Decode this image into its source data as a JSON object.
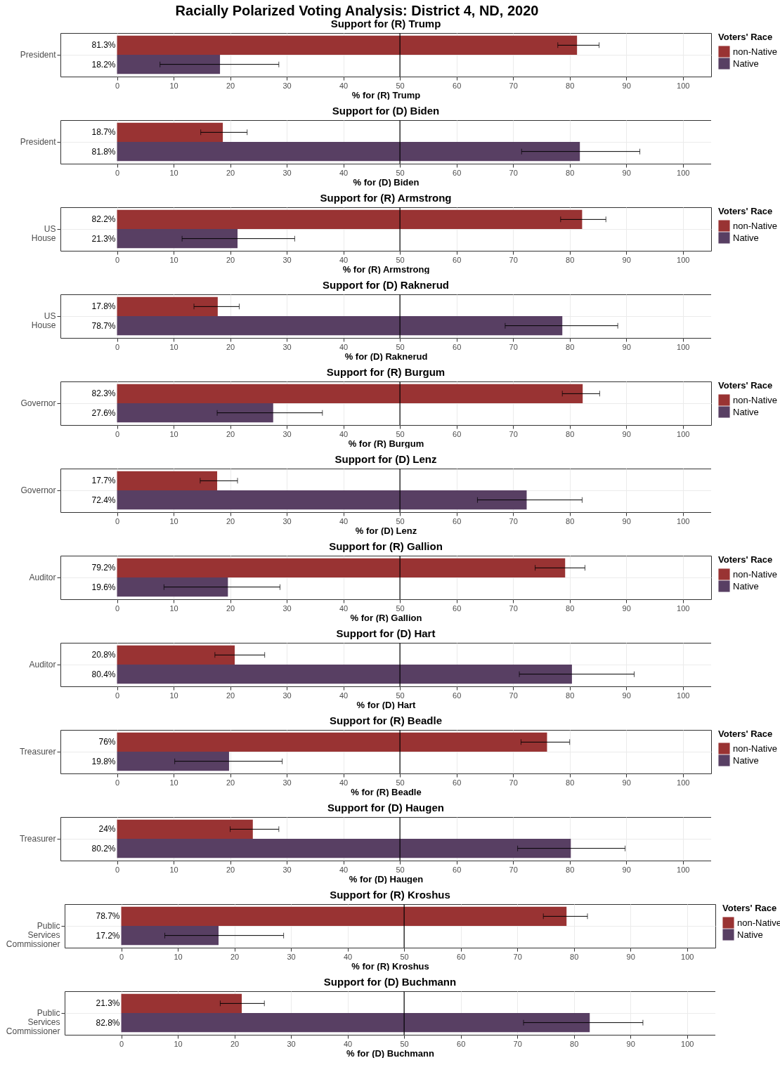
{
  "chart_data": [
    {
      "type": "bar",
      "orientation": "horizontal",
      "annotations": [
        "Racially Polarized Voting Analysis: District 4, ND, 2020"
      ],
      "title": "Support for (R) Trump",
      "xlabel": "% for (R) Trump",
      "legend_title": "Voters' Race",
      "legend": "right",
      "grid": true,
      "categories": [
        "President"
      ],
      "xlim": [
        -10,
        105
      ],
      "xticks": [
        0,
        10,
        20,
        30,
        40,
        50,
        60,
        70,
        80,
        90,
        100
      ],
      "ref_lines": [
        {
          "axis": "x",
          "value": 50
        }
      ],
      "series": [
        {
          "name": "non-Native",
          "color": "#993333",
          "values": [
            81.3
          ],
          "errors": [
            [
              77.9,
              85.2
            ]
          ],
          "value_labels": [
            "81.3%"
          ]
        },
        {
          "name": "Native",
          "color": "#583f63",
          "values": [
            18.2
          ],
          "errors": [
            [
              7.6,
              28.6
            ]
          ],
          "value_labels": [
            "18.2%"
          ]
        }
      ]
    },
    {
      "type": "bar",
      "orientation": "horizontal",
      "title": "Support for (D) Biden",
      "xlabel": "% for (D) Biden",
      "grid": true,
      "categories": [
        "President"
      ],
      "xlim": [
        -10,
        105
      ],
      "xticks": [
        0,
        10,
        20,
        30,
        40,
        50,
        60,
        70,
        80,
        90,
        100
      ],
      "ref_lines": [
        {
          "axis": "x",
          "value": 50
        }
      ],
      "series": [
        {
          "color": "#993333",
          "values": [
            18.7
          ],
          "errors": [
            [
              14.8,
              23.0
            ]
          ],
          "value_labels": [
            "18.7%"
          ]
        },
        {
          "color": "#583f63",
          "values": [
            81.8
          ],
          "errors": [
            [
              71.5,
              92.4
            ]
          ],
          "value_labels": [
            "81.8%"
          ]
        }
      ]
    },
    {
      "type": "bar",
      "orientation": "horizontal",
      "title": "Support for (R) Armstrong",
      "xlabel": "% for (R) Armstrong",
      "legend_title": "Voters' Race",
      "legend": "right",
      "grid": true,
      "categories": [
        "US House"
      ],
      "xlim": [
        -10,
        105
      ],
      "xticks": [
        0,
        10,
        20,
        30,
        40,
        50,
        60,
        70,
        80,
        90,
        100
      ],
      "ref_lines": [
        {
          "axis": "x",
          "value": 50
        }
      ],
      "series": [
        {
          "name": "non-Native",
          "color": "#993333",
          "values": [
            82.2
          ],
          "errors": [
            [
              78.4,
              86.4
            ]
          ],
          "value_labels": [
            "82.2%"
          ]
        },
        {
          "name": "Native",
          "color": "#583f63",
          "values": [
            21.3
          ],
          "errors": [
            [
              11.5,
              31.4
            ]
          ],
          "value_labels": [
            "21.3%"
          ]
        }
      ]
    },
    {
      "type": "bar",
      "orientation": "horizontal",
      "title": "Support for (D) Raknerud",
      "xlabel": "% for (D) Raknerud",
      "grid": true,
      "categories": [
        "US House"
      ],
      "xlim": [
        -10,
        105
      ],
      "xticks": [
        0,
        10,
        20,
        30,
        40,
        50,
        60,
        70,
        80,
        90,
        100
      ],
      "ref_lines": [
        {
          "axis": "x",
          "value": 50
        }
      ],
      "series": [
        {
          "color": "#993333",
          "values": [
            17.8
          ],
          "errors": [
            [
              13.6,
              21.6
            ]
          ],
          "value_labels": [
            "17.8%"
          ]
        },
        {
          "color": "#583f63",
          "values": [
            78.7
          ],
          "errors": [
            [
              68.6,
              88.5
            ]
          ],
          "value_labels": [
            "78.7%"
          ]
        }
      ]
    },
    {
      "type": "bar",
      "orientation": "horizontal",
      "title": "Support for (R) Burgum",
      "xlabel": "% for (R) Burgum",
      "legend_title": "Voters' Race",
      "legend": "right",
      "grid": true,
      "categories": [
        "Governor"
      ],
      "xlim": [
        -10,
        105
      ],
      "xticks": [
        0,
        10,
        20,
        30,
        40,
        50,
        60,
        70,
        80,
        90,
        100
      ],
      "ref_lines": [
        {
          "axis": "x",
          "value": 50
        }
      ],
      "series": [
        {
          "name": "non-Native",
          "color": "#993333",
          "values": [
            82.3
          ],
          "errors": [
            [
              78.7,
              85.3
            ]
          ],
          "value_labels": [
            "82.3%"
          ]
        },
        {
          "name": "Native",
          "color": "#583f63",
          "values": [
            27.6
          ],
          "errors": [
            [
              17.7,
              36.3
            ]
          ],
          "value_labels": [
            "27.6%"
          ]
        }
      ]
    },
    {
      "type": "bar",
      "orientation": "horizontal",
      "title": "Support for (D) Lenz",
      "xlabel": "% for (D) Lenz",
      "grid": true,
      "categories": [
        "Governor"
      ],
      "xlim": [
        -10,
        105
      ],
      "xticks": [
        0,
        10,
        20,
        30,
        40,
        50,
        60,
        70,
        80,
        90,
        100
      ],
      "ref_lines": [
        {
          "axis": "x",
          "value": 50
        }
      ],
      "series": [
        {
          "color": "#993333",
          "values": [
            17.7
          ],
          "errors": [
            [
              14.7,
              21.3
            ]
          ],
          "value_labels": [
            "17.7%"
          ]
        },
        {
          "color": "#583f63",
          "values": [
            72.4
          ],
          "errors": [
            [
              63.7,
              82.2
            ]
          ],
          "value_labels": [
            "72.4%"
          ]
        }
      ]
    },
    {
      "type": "bar",
      "orientation": "horizontal",
      "title": "Support for (R) Gallion",
      "xlabel": "% for (R) Gallion",
      "legend_title": "Voters' Race",
      "legend": "right",
      "grid": true,
      "categories": [
        "Auditor"
      ],
      "xlim": [
        -10,
        105
      ],
      "xticks": [
        0,
        10,
        20,
        30,
        40,
        50,
        60,
        70,
        80,
        90,
        100
      ],
      "ref_lines": [
        {
          "axis": "x",
          "value": 50
        }
      ],
      "series": [
        {
          "name": "non-Native",
          "color": "#993333",
          "values": [
            79.2
          ],
          "errors": [
            [
              73.9,
              82.7
            ]
          ],
          "value_labels": [
            "79.2%"
          ]
        },
        {
          "name": "Native",
          "color": "#583f63",
          "values": [
            19.6
          ],
          "errors": [
            [
              8.3,
              28.8
            ]
          ],
          "value_labels": [
            "19.6%"
          ]
        }
      ]
    },
    {
      "type": "bar",
      "orientation": "horizontal",
      "title": "Support for (D) Hart",
      "xlabel": "% for (D) Hart",
      "grid": true,
      "categories": [
        "Auditor"
      ],
      "xlim": [
        -10,
        105
      ],
      "xticks": [
        0,
        10,
        20,
        30,
        40,
        50,
        60,
        70,
        80,
        90,
        100
      ],
      "ref_lines": [
        {
          "axis": "x",
          "value": 50
        }
      ],
      "series": [
        {
          "color": "#993333",
          "values": [
            20.8
          ],
          "errors": [
            [
              17.3,
              26.1
            ]
          ],
          "value_labels": [
            "20.8%"
          ]
        },
        {
          "color": "#583f63",
          "values": [
            80.4
          ],
          "errors": [
            [
              71.1,
              91.4
            ]
          ],
          "value_labels": [
            "80.4%"
          ]
        }
      ]
    },
    {
      "type": "bar",
      "orientation": "horizontal",
      "title": "Support for (R) Beadle",
      "xlabel": "% for (R) Beadle",
      "legend_title": "Voters' Race",
      "legend": "right",
      "grid": true,
      "categories": [
        "Treasurer"
      ],
      "xlim": [
        -10,
        105
      ],
      "xticks": [
        0,
        10,
        20,
        30,
        40,
        50,
        60,
        70,
        80,
        90,
        100
      ],
      "ref_lines": [
        {
          "axis": "x",
          "value": 50
        }
      ],
      "series": [
        {
          "name": "non-Native",
          "color": "#993333",
          "values": [
            76
          ],
          "errors": [
            [
              71.4,
              80.0
            ]
          ],
          "value_labels": [
            "76%"
          ]
        },
        {
          "name": "Native",
          "color": "#583f63",
          "values": [
            19.8
          ],
          "errors": [
            [
              10.2,
              29.2
            ]
          ],
          "value_labels": [
            "19.8%"
          ]
        }
      ]
    },
    {
      "type": "bar",
      "orientation": "horizontal",
      "title": "Support for (D) Haugen",
      "xlabel": "% for (D) Haugen",
      "grid": true,
      "categories": [
        "Treasurer"
      ],
      "xlim": [
        -10,
        105
      ],
      "xticks": [
        0,
        10,
        20,
        30,
        40,
        50,
        60,
        70,
        80,
        90,
        100
      ],
      "ref_lines": [
        {
          "axis": "x",
          "value": 50
        }
      ],
      "series": [
        {
          "color": "#993333",
          "values": [
            24
          ],
          "errors": [
            [
              20.0,
              28.6
            ]
          ],
          "value_labels": [
            "24%"
          ]
        },
        {
          "color": "#583f63",
          "values": [
            80.2
          ],
          "errors": [
            [
              70.8,
              89.8
            ]
          ],
          "value_labels": [
            "80.2%"
          ]
        }
      ]
    },
    {
      "type": "bar",
      "orientation": "horizontal",
      "title": "Support for (R) Kroshus",
      "xlabel": "% for (R) Kroshus",
      "legend_title": "Voters' Race",
      "legend": "right",
      "grid": true,
      "categories": [
        "Public Services Commissioner"
      ],
      "xlim": [
        -10,
        105
      ],
      "xticks": [
        0,
        10,
        20,
        30,
        40,
        50,
        60,
        70,
        80,
        90,
        100
      ],
      "ref_lines": [
        {
          "axis": "x",
          "value": 50
        }
      ],
      "series": [
        {
          "name": "non-Native",
          "color": "#993333",
          "values": [
            78.7
          ],
          "errors": [
            [
              74.6,
              82.4
            ]
          ],
          "value_labels": [
            "78.7%"
          ]
        },
        {
          "name": "Native",
          "color": "#583f63",
          "values": [
            17.2
          ],
          "errors": [
            [
              7.7,
              28.7
            ]
          ],
          "value_labels": [
            "17.2%"
          ]
        }
      ]
    },
    {
      "type": "bar",
      "orientation": "horizontal",
      "title": "Support for (D) Buchmann",
      "xlabel": "% for (D) Buchmann",
      "grid": true,
      "categories": [
        "Public Services Commissioner"
      ],
      "xlim": [
        -10,
        105
      ],
      "xticks": [
        0,
        10,
        20,
        30,
        40,
        50,
        60,
        70,
        80,
        90,
        100
      ],
      "ref_lines": [
        {
          "axis": "x",
          "value": 50
        }
      ],
      "series": [
        {
          "color": "#993333",
          "values": [
            21.3
          ],
          "errors": [
            [
              17.5,
              25.3
            ]
          ],
          "value_labels": [
            "21.3%"
          ]
        },
        {
          "color": "#583f63",
          "values": [
            82.8
          ],
          "errors": [
            [
              71.1,
              92.2
            ]
          ],
          "value_labels": [
            "82.8%"
          ]
        }
      ]
    }
  ]
}
